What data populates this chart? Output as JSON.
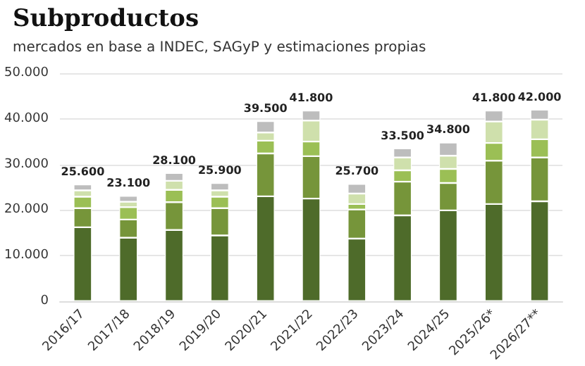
{
  "chart_data": {
    "type": "bar",
    "stacked": true,
    "title": "Subproductos",
    "subtitle": "mercados en base a INDEC, SAGyP y estimaciones propias",
    "categories": [
      "2016/17",
      "2017/18",
      "2018/19",
      "2019/20",
      "2020/21",
      "2021/22",
      "2022/23",
      "2023/24",
      "2024/25",
      "2025/26*",
      "2026/27**"
    ],
    "series": [
      {
        "color": "#4e6b2a",
        "values": [
          16200,
          13900,
          15600,
          14400,
          23000,
          22500,
          13700,
          18800,
          19900,
          21300,
          21900
        ]
      },
      {
        "color": "#76953a",
        "values": [
          4200,
          4000,
          6100,
          6000,
          9400,
          9300,
          6400,
          7400,
          6000,
          9500,
          9600
        ]
      },
      {
        "color": "#9bbf55",
        "values": [
          2500,
          2700,
          2700,
          2500,
          2800,
          3200,
          1200,
          2500,
          3100,
          3900,
          4000
        ]
      },
      {
        "color": "#cfe0ac",
        "values": [
          1400,
          1200,
          2000,
          1400,
          1800,
          4600,
          2300,
          2800,
          2900,
          4700,
          4300
        ]
      },
      {
        "color": "#bdbdbd",
        "values": [
          1300,
          1300,
          1700,
          1600,
          2500,
          2200,
          2100,
          2000,
          2900,
          2400,
          2200
        ]
      }
    ],
    "totals": [
      "25.600",
      "23.100",
      "28.100",
      "25.900",
      "39.500",
      "41.800",
      "25.700",
      "33.500",
      "34.800",
      "41.800",
      "42.000"
    ],
    "ylim": [
      0,
      50000
    ],
    "yticks": [
      0,
      {
        "value": 10000,
        "label": "10.000"
      },
      {
        "value": 20000,
        "label": "20.000"
      },
      {
        "value": 30000,
        "label": "30.000"
      },
      {
        "value": 40000,
        "label": "40.000"
      },
      {
        "value": 50000,
        "label": "50.000"
      }
    ],
    "grid": "y"
  }
}
